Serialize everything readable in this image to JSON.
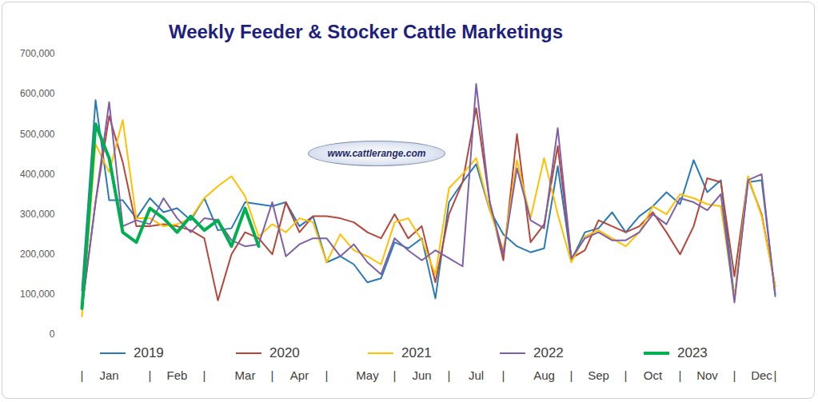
{
  "chart_data": {
    "type": "line",
    "title": "Weekly Feeder & Stocker Cattle Marketings",
    "annotations": [
      "www.cattlerange.com"
    ],
    "categories": [
      "|",
      null,
      "Jan",
      null,
      null,
      "|",
      null,
      "Feb",
      null,
      "|",
      null,
      null,
      "Mar",
      null,
      "|",
      null,
      "Apr",
      null,
      "|",
      null,
      null,
      "May",
      null,
      "|",
      null,
      "Jun",
      null,
      "|",
      null,
      "Jul",
      null,
      "|",
      null,
      null,
      "Aug",
      null,
      "|",
      null,
      "Sep",
      null,
      "|",
      null,
      "Oct",
      null,
      "|",
      null,
      "Nov",
      null,
      "|",
      null,
      "Dec",
      "|"
    ],
    "series": [
      {
        "name": "2019",
        "color": "#2a7ab8",
        "values": [
          110000,
          585000,
          335000,
          335000,
          290000,
          340000,
          305000,
          315000,
          285000,
          340000,
          260000,
          265000,
          330000,
          325000,
          320000,
          330000,
          270000,
          295000,
          180000,
          195000,
          175000,
          130000,
          140000,
          230000,
          215000,
          240000,
          90000,
          330000,
          380000,
          425000,
          310000,
          250000,
          220000,
          205000,
          215000,
          420000,
          185000,
          255000,
          265000,
          305000,
          255000,
          295000,
          320000,
          355000,
          325000,
          435000,
          355000,
          385000,
          90000,
          380000,
          385000,
          100000
        ]
      },
      {
        "name": "2020",
        "color": "#b5473a",
        "values": [
          65000,
          330000,
          545000,
          430000,
          270000,
          270000,
          275000,
          270000,
          260000,
          240000,
          85000,
          200000,
          255000,
          240000,
          200000,
          330000,
          255000,
          295000,
          295000,
          290000,
          280000,
          255000,
          240000,
          300000,
          240000,
          270000,
          130000,
          300000,
          380000,
          565000,
          330000,
          185000,
          500000,
          230000,
          275000,
          470000,
          190000,
          210000,
          285000,
          270000,
          255000,
          270000,
          305000,
          255000,
          200000,
          270000,
          390000,
          380000,
          145000,
          390000,
          300000,
          120000
        ]
      },
      {
        "name": "2021",
        "color": "#ffc000",
        "values": [
          45000,
          475000,
          405000,
          535000,
          290000,
          290000,
          270000,
          275000,
          290000,
          340000,
          370000,
          395000,
          345000,
          245000,
          275000,
          255000,
          290000,
          280000,
          180000,
          250000,
          210000,
          195000,
          175000,
          280000,
          290000,
          235000,
          150000,
          365000,
          400000,
          440000,
          310000,
          210000,
          435000,
          290000,
          440000,
          300000,
          180000,
          245000,
          260000,
          240000,
          220000,
          255000,
          320000,
          300000,
          350000,
          340000,
          325000,
          320000,
          90000,
          395000,
          295000,
          120000
        ]
      },
      {
        "name": "2022",
        "color": "#7f5fa8",
        "values": [
          65000,
          330000,
          580000,
          270000,
          285000,
          275000,
          340000,
          290000,
          255000,
          290000,
          285000,
          235000,
          220000,
          225000,
          330000,
          195000,
          225000,
          240000,
          240000,
          195000,
          225000,
          180000,
          150000,
          240000,
          210000,
          185000,
          210000,
          190000,
          170000,
          625000,
          330000,
          200000,
          415000,
          285000,
          265000,
          515000,
          190000,
          240000,
          255000,
          235000,
          235000,
          255000,
          300000,
          275000,
          340000,
          330000,
          310000,
          350000,
          80000,
          385000,
          400000,
          95000
        ]
      },
      {
        "name": "2023",
        "color": "#00b050",
        "values": [
          65000,
          525000,
          440000,
          255000,
          230000,
          315000,
          290000,
          255000,
          295000,
          260000,
          285000,
          220000,
          315000,
          220000,
          null,
          null,
          null,
          null,
          null,
          null,
          null,
          null,
          null,
          null,
          null,
          null,
          null,
          null,
          null,
          null,
          null,
          null,
          null,
          null,
          null,
          null,
          null,
          null,
          null,
          null,
          null,
          null,
          null,
          null,
          null,
          null,
          null,
          null,
          null,
          null,
          null,
          null
        ]
      }
    ],
    "ylim": [
      0,
      700000
    ],
    "yticks": [
      0,
      {
        "value": 100000,
        "label": "100,000"
      },
      {
        "value": 200000,
        "label": "200,000"
      },
      {
        "value": 300000,
        "label": "300,000"
      },
      {
        "value": 400000,
        "label": "400,000"
      },
      {
        "value": 500000,
        "label": "500,000"
      },
      {
        "value": 600000,
        "label": "600,000"
      },
      {
        "value": 700000,
        "label": "700,000"
      }
    ],
    "grid": false,
    "legend": "bottom"
  }
}
